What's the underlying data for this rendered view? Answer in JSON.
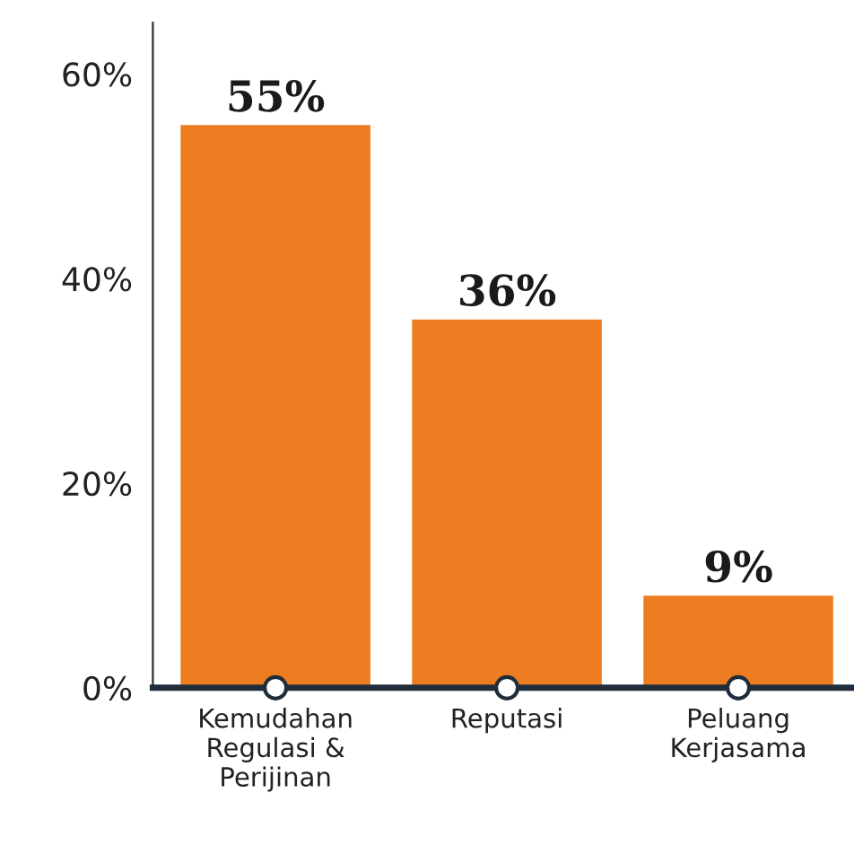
{
  "chart_data": {
    "type": "bar",
    "categories": [
      "Kemudahan\nRegulasi &\nPerijinan",
      "Reputasi",
      "Peluang\nKerjasama"
    ],
    "values": [
      55,
      36,
      9
    ],
    "color": "#ee7d22",
    "ylim": [
      0,
      65
    ],
    "yticks": [
      {
        "value": 0,
        "label": "0%"
      },
      {
        "value": 20,
        "label": "20%"
      },
      {
        "value": 40,
        "label": "40%"
      },
      {
        "value": 60,
        "label": "60%"
      }
    ],
    "value_labels": [
      "55%",
      "36%",
      "9%"
    ],
    "grid": false,
    "legend": false
  }
}
